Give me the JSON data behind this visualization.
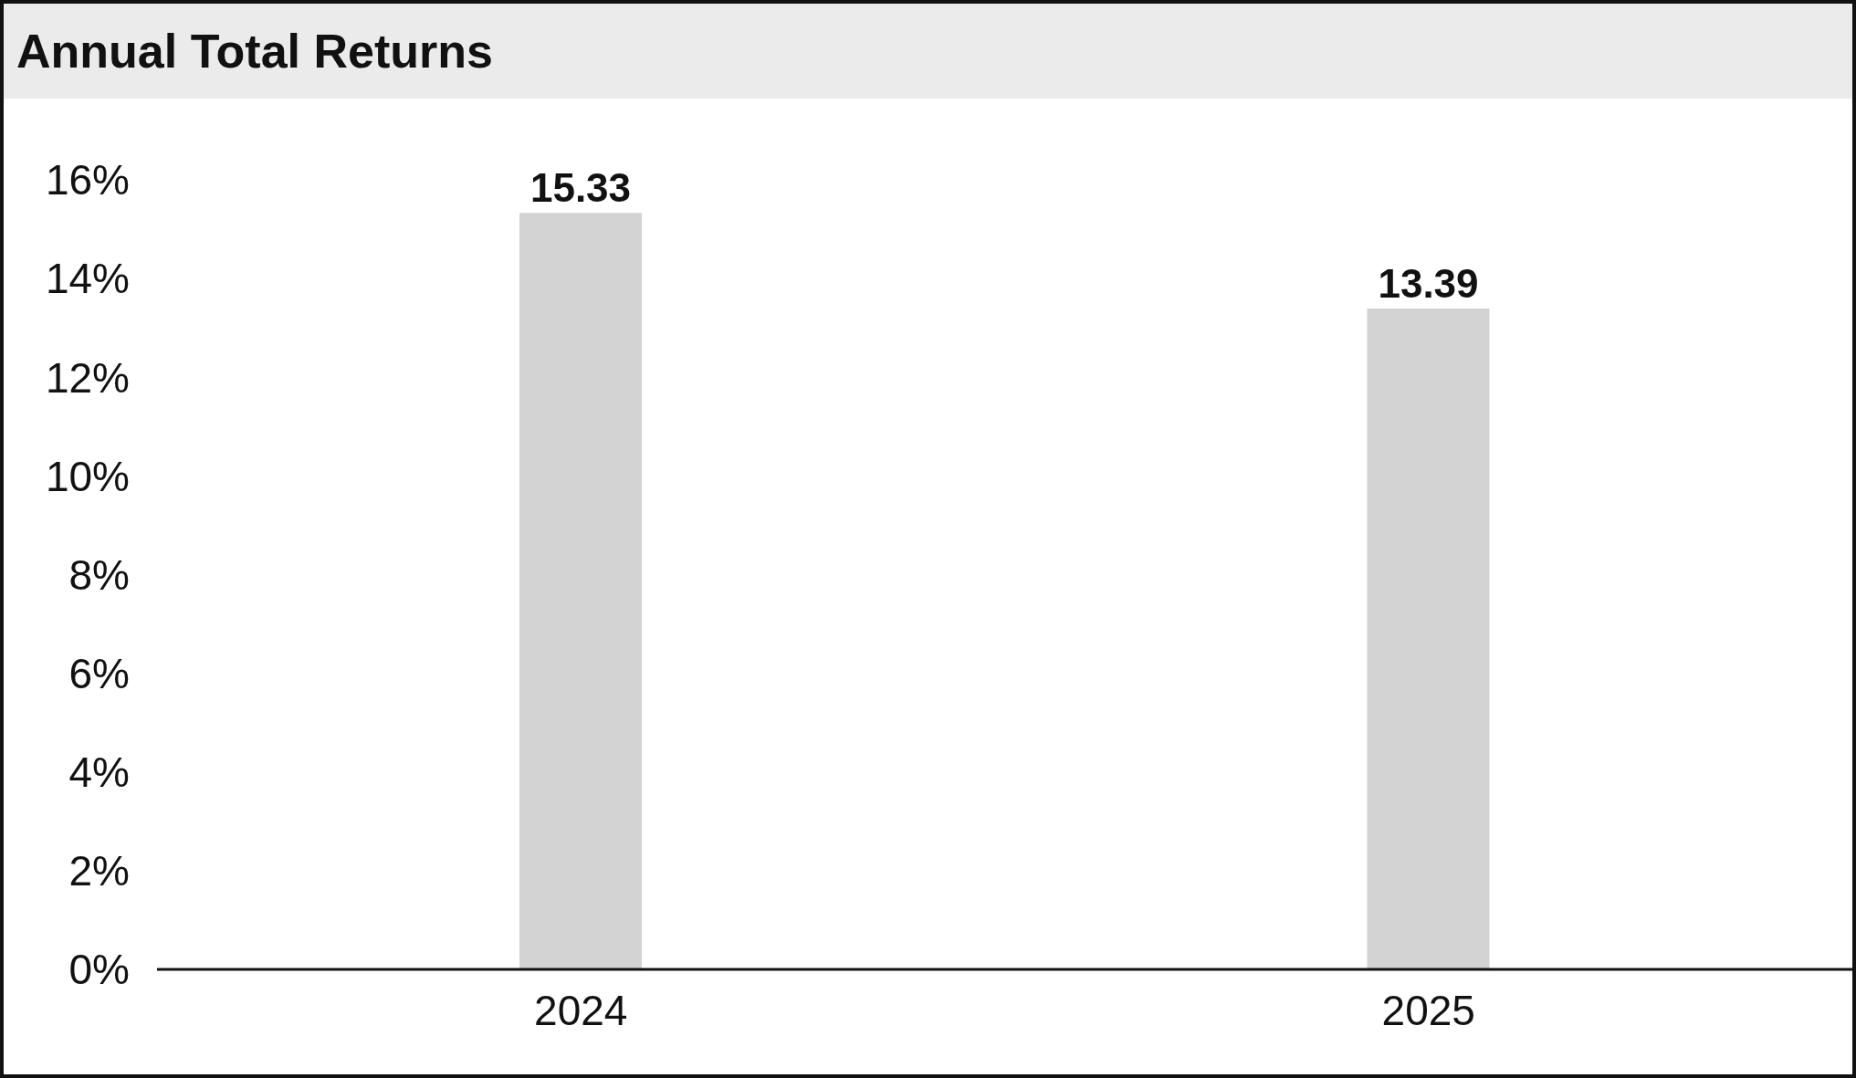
{
  "chart_data": {
    "type": "bar",
    "title": "Annual Total Returns",
    "categories": [
      "2024",
      "2025"
    ],
    "values": [
      15.33,
      13.39
    ],
    "color": "#d3d3d3",
    "data_labels": true,
    "ylim": [
      0,
      16
    ],
    "yticks": [
      {
        "value": 0,
        "label": "0%"
      },
      {
        "value": 2,
        "label": "2%"
      },
      {
        "value": 4,
        "label": "4%"
      },
      {
        "value": 6,
        "label": "6%"
      },
      {
        "value": 8,
        "label": "8%"
      },
      {
        "value": 10,
        "label": "10%"
      },
      {
        "value": 12,
        "label": "12%"
      },
      {
        "value": 14,
        "label": "14%"
      },
      {
        "value": 16,
        "label": "16%"
      }
    ],
    "grid": false,
    "legend": false
  }
}
